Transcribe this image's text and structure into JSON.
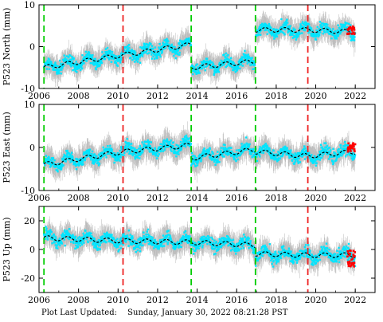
{
  "footer": {
    "label": "Plot Last Updated:",
    "value": "Sunday, January 30, 2022 08:21:28 PST"
  },
  "colors": {
    "errorbar": "#a9a9a9",
    "data": "#00e5ff",
    "model": "#000000",
    "recent": "#ff0000",
    "green_line": "#00cc00",
    "red_line": "#ee2222"
  },
  "chart_data": [
    {
      "type": "scatter",
      "ylabel": "P523 North (mm)",
      "xlim": [
        2006,
        2023
      ],
      "ylim": [
        -10,
        10
      ],
      "yticks": [
        -10,
        0,
        10
      ],
      "xticks": [
        2006,
        2008,
        2010,
        2012,
        2014,
        2016,
        2018,
        2020,
        2022
      ],
      "green_lines": [
        2006.25,
        2013.7,
        2016.95
      ],
      "red_lines": [
        2010.25,
        2019.6
      ],
      "model_segments": [
        {
          "x": [
            2006.25,
            2010.25,
            2013.7
          ],
          "y": [
            -5,
            -2,
            0.5
          ]
        },
        {
          "x": [
            2013.7,
            2016.95
          ],
          "y": [
            -5,
            -3.5
          ]
        },
        {
          "x": [
            2016.95,
            2019.6,
            2022
          ],
          "y": [
            4,
            4,
            3.5
          ]
        }
      ],
      "recent_points": {
        "x": [
          2021.6,
          2022.0
        ],
        "y": [
          3,
          5
        ]
      }
    },
    {
      "type": "scatter",
      "ylabel": "P523 East (mm)",
      "xlim": [
        2006,
        2023
      ],
      "ylim": [
        -10,
        10
      ],
      "yticks": [
        -10,
        0,
        10
      ],
      "xticks": [
        2006,
        2008,
        2010,
        2012,
        2014,
        2016,
        2018,
        2020,
        2022
      ],
      "green_lines": [
        2006.25,
        2013.7,
        2016.95
      ],
      "red_lines": [
        2010.25,
        2019.6
      ],
      "model_segments": [
        {
          "x": [
            2006.25,
            2010.25,
            2013.7
          ],
          "y": [
            -4,
            -1,
            0.5
          ]
        },
        {
          "x": [
            2013.7,
            2016.95
          ],
          "y": [
            -2.5,
            -0.5
          ]
        },
        {
          "x": [
            2016.95,
            2019.6,
            2022
          ],
          "y": [
            -1,
            -2,
            -1
          ]
        }
      ],
      "recent_points": {
        "x": [
          2021.6,
          2022.0
        ],
        "y": [
          -1,
          1
        ]
      }
    },
    {
      "type": "scatter",
      "ylabel": "P523 Up (mm)",
      "xlim": [
        2006,
        2023
      ],
      "ylim": [
        -30,
        30
      ],
      "yticks": [
        -20,
        0,
        20
      ],
      "xticks": [
        2006,
        2008,
        2010,
        2012,
        2014,
        2016,
        2018,
        2020,
        2022
      ],
      "green_lines": [
        2006.25,
        2013.7,
        2016.95
      ],
      "red_lines": [
        2010.25,
        2019.6
      ],
      "model_segments": [
        {
          "x": [
            2006.25,
            2010.25,
            2013.7
          ],
          "y": [
            8,
            6,
            5
          ]
        },
        {
          "x": [
            2013.7,
            2016.95
          ],
          "y": [
            5,
            3
          ]
        },
        {
          "x": [
            2016.95,
            2019.6,
            2022
          ],
          "y": [
            -3,
            -4,
            -4
          ]
        }
      ],
      "recent_points": {
        "x": [
          2021.6,
          2022.0
        ],
        "y": [
          -12,
          0
        ]
      }
    }
  ]
}
